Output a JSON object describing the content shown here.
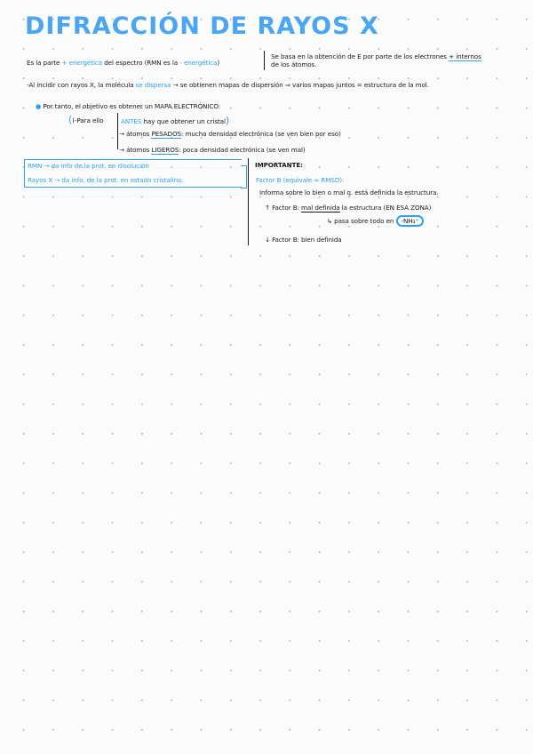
{
  "title": "DIFRACCIÓN DE RAYOS X",
  "intro": {
    "pre": "Es la parte ",
    "hl1": "+ energética",
    "mid": " del espectro (RMN es la ",
    "hl2": "- energética",
    "post": ")"
  },
  "side_note": {
    "line1_pre": "Se basa en la obtención de E por parte de los electrones ",
    "line1_hl": "+ internos",
    "line2": "de los átomos."
  },
  "incidir": {
    "pre": "-Al incidir con rayos X, la molécula ",
    "hl": "se dispersa",
    "post": " → se obtienen mapas de dispersión ⇒ varios mapas juntos = estructura de la mol."
  },
  "objetivo": "Por tanto, el objetivo es obtener un MAPA ELECTRÓNICO:",
  "para_ello": "(-Para ello",
  "antes": {
    "hl": "ANTES",
    "post": " hay que obtener un cristal"
  },
  "paren_close": ")",
  "pesados": {
    "pre": "→ átomos ",
    "u": "PESADOS",
    "post": ": mucha densidad electrónica (se ven bien por eso)"
  },
  "ligeros": {
    "pre": "→ átomos ",
    "u": "LIGEROS",
    "post": ": poca densidad electrónica (se ven mal)"
  },
  "box": {
    "line1": "RMN → da info de la prot. en disolución",
    "line2": "Rayos X → da info. de la prot. en estado cristalino."
  },
  "importante": {
    "heading": "IMPORTANTE:",
    "factor_b": "Factor B (equivale ≈ RMSD):",
    "informa": "Informa sobre lo bien o mal q. está definida la estructura.",
    "up_pre": "↑ Factor B: ",
    "up_u": "mal definida",
    "up_post": " la estructura (EN ESA ZONA)",
    "pasa": "↳ pasa sobre todo en ",
    "nh3": "-NH₃⁺",
    "down": "↓ Factor B: bien definida"
  }
}
